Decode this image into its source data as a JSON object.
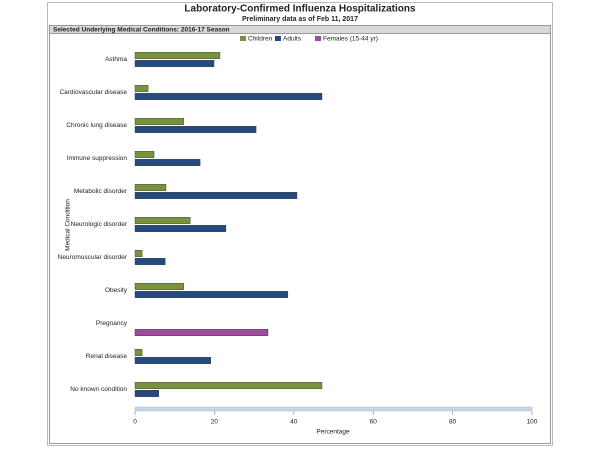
{
  "chart_data": {
    "type": "grouped-hbar",
    "title": "Laboratory-Confirmed Influenza Hospitalizations",
    "subtitle": "Preliminary data as of Feb 11, 2017",
    "panel_title": "Selected Underlying Medical Conditions: 2016-17 Season",
    "x_label": "Percentage",
    "y_label": "Medical Condition",
    "categories": [
      "Asthma",
      "Cardiovascular disease",
      "Chronic lung disease",
      "Immune suppression",
      "Metabolic disorder",
      "Neurologic disorder",
      "Neuromuscular disorder",
      "Obesity",
      "Pregnancy",
      "Renal disease",
      "No known condition"
    ],
    "series": [
      {
        "name": "Children",
        "color": "#77933c",
        "values": [
          21.4,
          3.3,
          12.3,
          4.8,
          7.8,
          13.9,
          1.8,
          12.3,
          null,
          1.8,
          47.1
        ]
      },
      {
        "name": "Adults",
        "color": "#254a7f",
        "values": [
          19.9,
          47.1,
          30.5,
          16.4,
          40.8,
          22.9,
          7.6,
          38.5,
          null,
          19.1,
          6.0
        ]
      },
      {
        "name": "Females (15-44 yr)",
        "color": "#9e4a9c",
        "values": [
          null,
          null,
          null,
          null,
          null,
          null,
          null,
          null,
          33.5,
          null,
          null
        ]
      }
    ],
    "xlim": [
      0,
      100
    ],
    "xticks": [
      0,
      20,
      40,
      60,
      80,
      100
    ],
    "legend": "top"
  }
}
